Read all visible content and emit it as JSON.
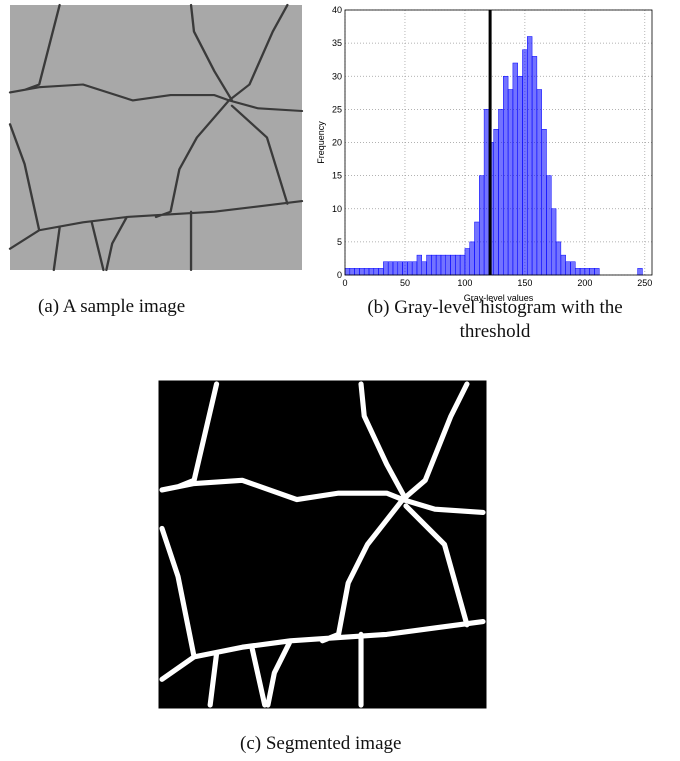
{
  "chart_data": {
    "type": "histogram",
    "xlabel": "Gray-level values",
    "ylabel": "Frequency",
    "bins": [
      0,
      4,
      8,
      12,
      16,
      20,
      24,
      28,
      32,
      36,
      40,
      44,
      48,
      52,
      56,
      60,
      64,
      68,
      72,
      76,
      80,
      84,
      88,
      92,
      96,
      100,
      104,
      108,
      112,
      116,
      120,
      124,
      128,
      132,
      136,
      140,
      144,
      148,
      152,
      156,
      160,
      164,
      168,
      172,
      176,
      180,
      184,
      188,
      192,
      196,
      200,
      204,
      208,
      212,
      216,
      220,
      224,
      228,
      232,
      236,
      240,
      244,
      248,
      252,
      256
    ],
    "values": [
      1,
      1,
      1,
      1,
      1,
      1,
      1,
      1,
      2,
      2,
      2,
      2,
      2,
      2,
      2,
      3,
      2,
      3,
      3,
      3,
      3,
      3,
      3,
      3,
      3,
      4,
      5,
      8,
      15,
      25,
      20,
      22,
      25,
      30,
      28,
      32,
      30,
      34,
      36,
      33,
      28,
      22,
      15,
      10,
      5,
      3,
      2,
      2,
      1,
      1,
      1,
      1,
      1,
      0,
      0,
      0,
      0,
      0,
      0,
      0,
      0,
      1,
      0,
      0
    ],
    "color": "#0000ff",
    "threshold": 121,
    "xlim": [
      0,
      256
    ],
    "xticks": [
      0,
      50,
      100,
      150,
      200,
      250
    ],
    "ylim": [
      0,
      40
    ],
    "yticks": [
      0,
      5,
      10,
      15,
      20,
      25,
      30,
      35,
      40
    ],
    "grid": true
  },
  "captions": {
    "a": "(a)   A sample image",
    "b": "(b)   Gray-level histogram with the threshold",
    "c": "(c)   Segmented image"
  }
}
